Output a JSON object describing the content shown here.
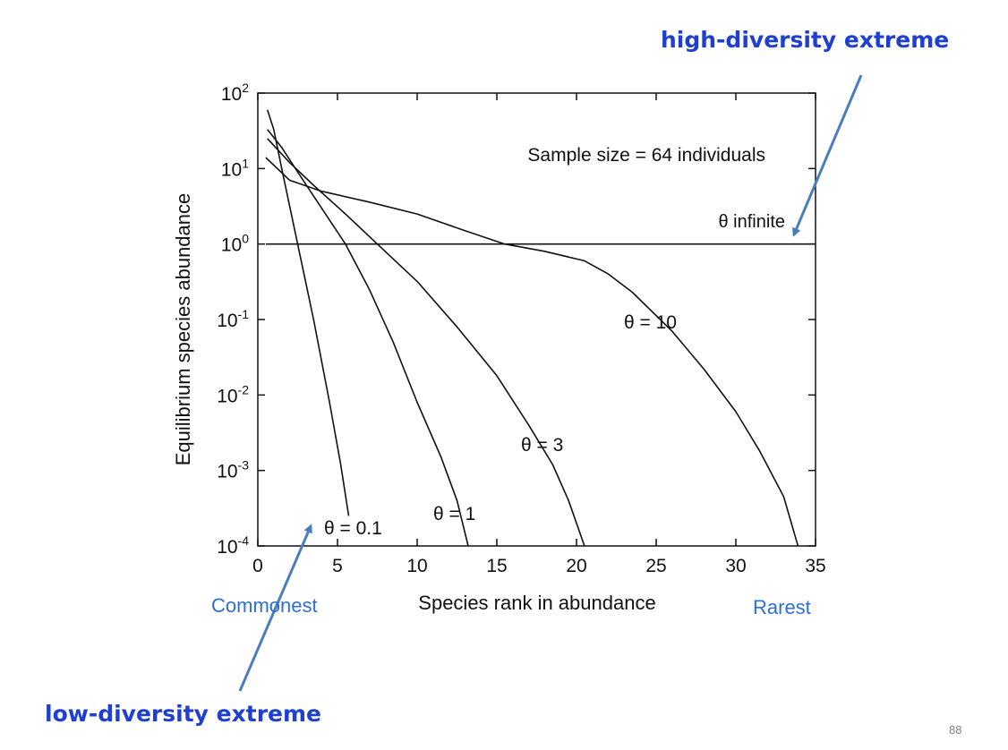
{
  "slide": {
    "annotations": {
      "high_diversity": "high-diversity extreme",
      "low_diversity": "low-diversity extreme",
      "commonest": "Commonest",
      "rarest": "Rarest"
    },
    "page_number": "88",
    "colors": {
      "annotation_blue": "#1f3fd0",
      "light_blue": "#2e6fd6",
      "arrow": "#4a7ebb",
      "ink": "#111111"
    }
  },
  "chart_data": {
    "type": "line",
    "yscale": "log",
    "xlabel": "Species rank in abundance",
    "ylabel": "Equilibrium species abundance",
    "xlim": [
      0,
      35
    ],
    "ylim": [
      0.0001,
      100
    ],
    "xticks": [
      0,
      5,
      10,
      15,
      20,
      25,
      30,
      35
    ],
    "xtick_labels": [
      "0",
      "5",
      "10",
      "15",
      "20",
      "25",
      "30",
      "35"
    ],
    "ytick_exponents": [
      2,
      1,
      0,
      -1,
      -2,
      -3,
      -4
    ],
    "ytick_base": "10",
    "inset_text": "Sample size = 64 individuals",
    "series": [
      {
        "name": "θ = 0.1",
        "label": "θ = 0.1",
        "points": [
          [
            0.6,
            60
          ],
          [
            1.0,
            33
          ],
          [
            1.5,
            10
          ],
          [
            2.5,
            1.0
          ],
          [
            3.5,
            0.1
          ],
          [
            4.5,
            0.008
          ],
          [
            5.2,
            0.0012
          ],
          [
            5.7,
            0.00025
          ]
        ]
      },
      {
        "name": "θ = 1",
        "label": "θ = 1",
        "points": [
          [
            0.6,
            33
          ],
          [
            1.5,
            19
          ],
          [
            2.5,
            9
          ],
          [
            4.0,
            3
          ],
          [
            5.5,
            1.0
          ],
          [
            7.0,
            0.25
          ],
          [
            8.5,
            0.05
          ],
          [
            10.0,
            0.008
          ],
          [
            11.5,
            0.0015
          ],
          [
            12.5,
            0.0004
          ],
          [
            13.2,
            0.0001
          ]
        ]
      },
      {
        "name": "θ = 3",
        "label": "θ = 3",
        "points": [
          [
            0.6,
            25
          ],
          [
            2.0,
            12
          ],
          [
            3.5,
            6
          ],
          [
            5.5,
            2.5
          ],
          [
            7.5,
            1.0
          ],
          [
            10.0,
            0.32
          ],
          [
            12.5,
            0.08
          ],
          [
            15.0,
            0.018
          ],
          [
            17.0,
            0.004
          ],
          [
            18.5,
            0.0012
          ],
          [
            19.5,
            0.0004
          ],
          [
            20.5,
            0.0001
          ]
        ]
      },
      {
        "name": "θ = 10",
        "label": "θ = 10",
        "points": [
          [
            0.5,
            14
          ],
          [
            2.0,
            7
          ],
          [
            4.0,
            5
          ],
          [
            7.0,
            3.6
          ],
          [
            10.0,
            2.5
          ],
          [
            13.0,
            1.5
          ],
          [
            15.5,
            1.0
          ],
          [
            18.0,
            0.8
          ],
          [
            20.5,
            0.6
          ],
          [
            22.0,
            0.4
          ],
          [
            23.5,
            0.23
          ],
          [
            26.0,
            0.07
          ],
          [
            28.0,
            0.022
          ],
          [
            30.0,
            0.006
          ],
          [
            31.5,
            0.0018
          ],
          [
            33.0,
            0.00045
          ],
          [
            33.9,
            0.0001
          ]
        ]
      },
      {
        "name": "θ infinite",
        "label": "θ infinite",
        "points": [
          [
            0.5,
            1.0
          ],
          [
            34.9,
            1.0
          ]
        ]
      }
    ]
  }
}
